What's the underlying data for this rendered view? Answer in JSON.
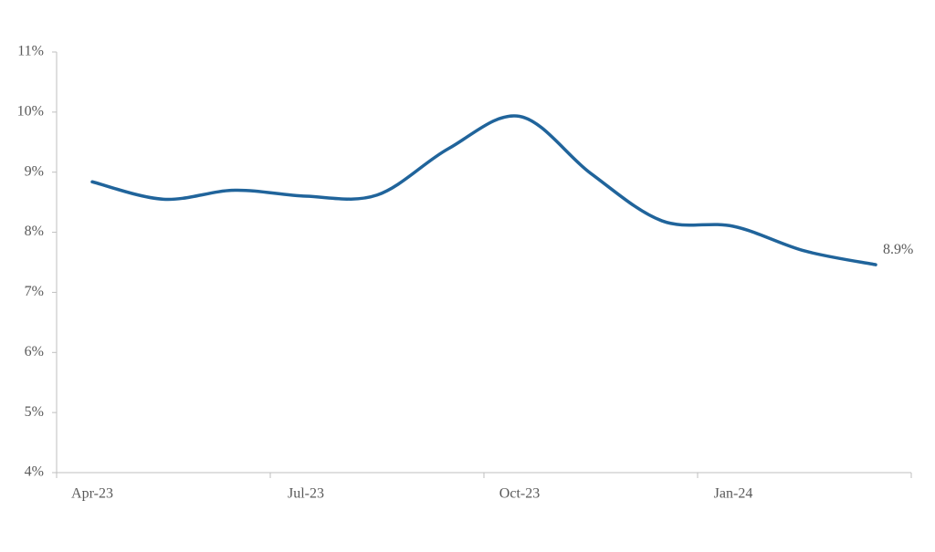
{
  "chart_data": {
    "type": "line",
    "categories": [
      "Apr-23",
      null,
      null,
      "Jul-23",
      null,
      null,
      "Oct-23",
      null,
      null,
      "Jan-24",
      null,
      null
    ],
    "series": [
      {
        "color": "#20649b",
        "values": [
          8.84,
          8.55,
          8.7,
          8.6,
          8.62,
          9.39,
          9.93,
          8.98,
          8.19,
          8.1,
          7.69,
          7.46
        ]
      }
    ],
    "annotation": "8.9%",
    "ylim": [
      4,
      11
    ],
    "yticks": [
      {
        "value": 4,
        "label": "4%"
      },
      {
        "value": 5,
        "label": "5%"
      },
      {
        "value": 6,
        "label": "6%"
      },
      {
        "value": 7,
        "label": "7%"
      },
      {
        "value": 8,
        "label": "8%"
      },
      {
        "value": 9,
        "label": "9%"
      },
      {
        "value": 10,
        "label": "10%"
      },
      {
        "value": 11,
        "label": "11%"
      }
    ],
    "grid": false
  }
}
